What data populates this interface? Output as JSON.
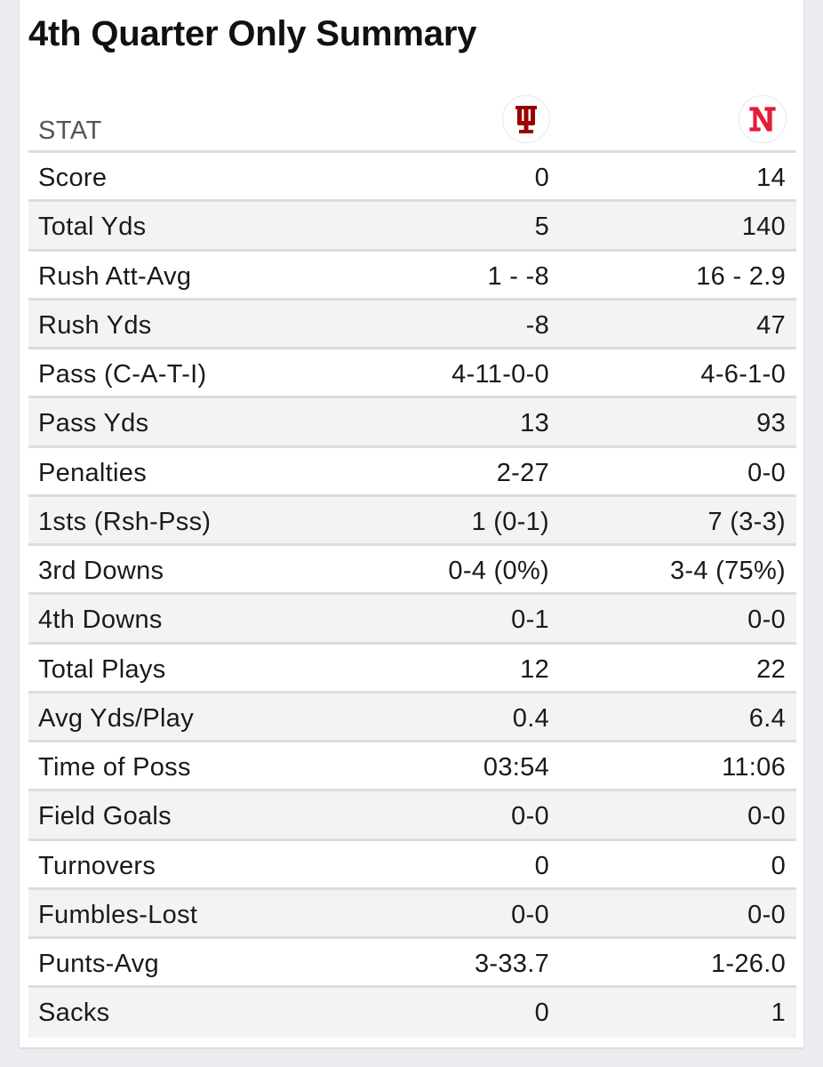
{
  "title": "4th Quarter Only Summary",
  "header": {
    "stat_label": "STAT",
    "team1_logo": "indiana-iu-logo",
    "team2_logo": "nebraska-n-logo",
    "team1_color": "#990000",
    "team2_color": "#e41c38"
  },
  "rows": [
    {
      "stat": "Score",
      "team1": "0",
      "team2": "14"
    },
    {
      "stat": "Total Yds",
      "team1": "5",
      "team2": "140"
    },
    {
      "stat": "Rush Att-Avg",
      "team1": "1 - -8",
      "team2": "16 - 2.9"
    },
    {
      "stat": "Rush Yds",
      "team1": "-8",
      "team2": "47"
    },
    {
      "stat": "Pass (C-A-T-I)",
      "team1": "4-11-0-0",
      "team2": "4-6-1-0"
    },
    {
      "stat": "Pass Yds",
      "team1": "13",
      "team2": "93"
    },
    {
      "stat": "Penalties",
      "team1": "2-27",
      "team2": "0-0"
    },
    {
      "stat": "1sts (Rsh-Pss)",
      "team1": "1 (0-1)",
      "team2": "7 (3-3)"
    },
    {
      "stat": "3rd Downs",
      "team1": "0-4 (0%)",
      "team2": "3-4 (75%)"
    },
    {
      "stat": "4th Downs",
      "team1": "0-1",
      "team2": "0-0"
    },
    {
      "stat": "Total Plays",
      "team1": "12",
      "team2": "22"
    },
    {
      "stat": "Avg Yds/Play",
      "team1": "0.4",
      "team2": "6.4"
    },
    {
      "stat": "Time of Poss",
      "team1": "03:54",
      "team2": "11:06"
    },
    {
      "stat": "Field Goals",
      "team1": "0-0",
      "team2": "0-0"
    },
    {
      "stat": "Turnovers",
      "team1": "0",
      "team2": "0"
    },
    {
      "stat": "Fumbles-Lost",
      "team1": "0-0",
      "team2": "0-0"
    },
    {
      "stat": "Punts-Avg",
      "team1": "3-33.7",
      "team2": "1-26.0"
    },
    {
      "stat": "Sacks",
      "team1": "0",
      "team2": "1"
    }
  ]
}
